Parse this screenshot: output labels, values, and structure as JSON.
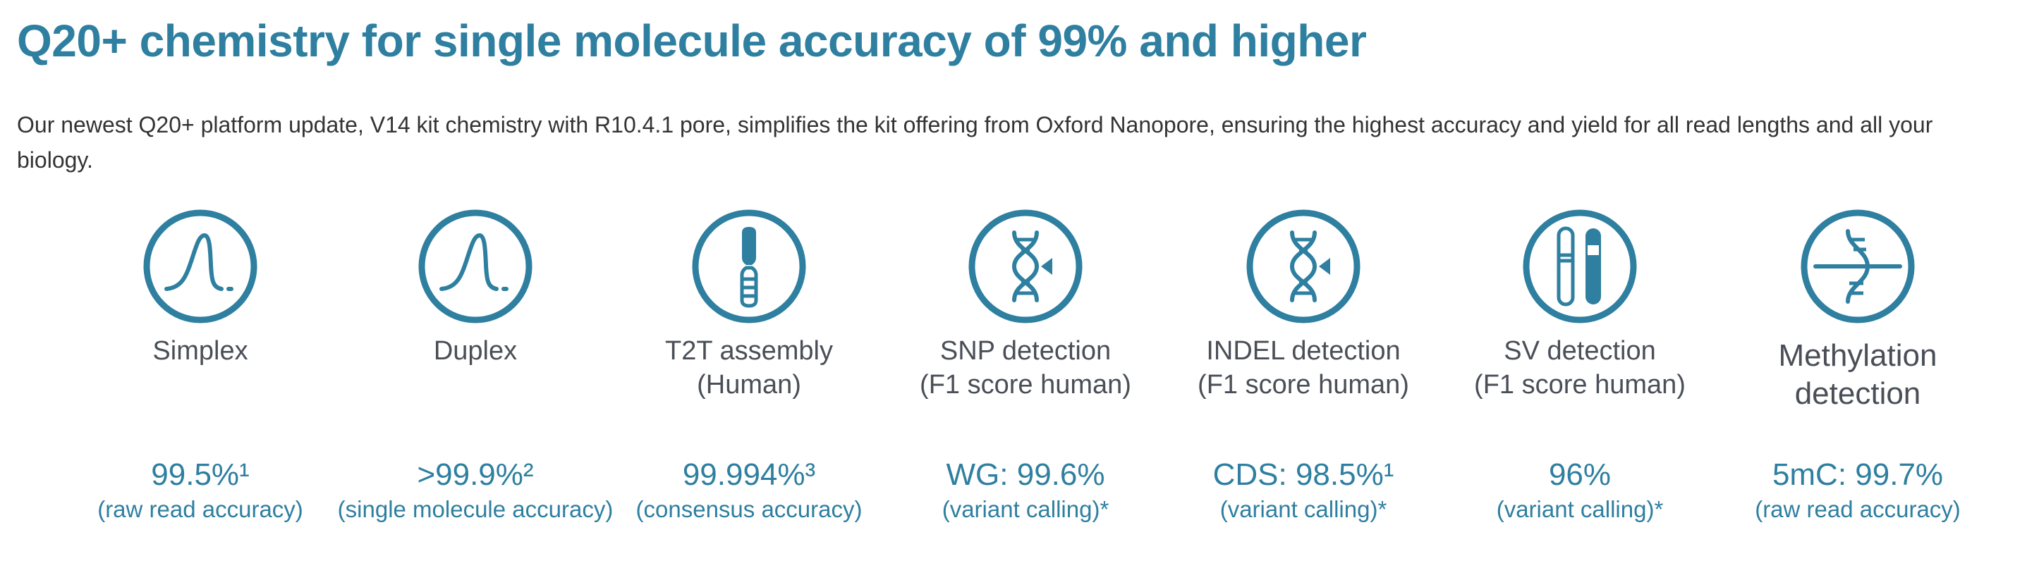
{
  "title": "Q20+ chemistry for single molecule accuracy of 99% and higher",
  "intro": "Our newest Q20+ platform update, V14 kit chemistry with R10.4.1 pore, simplifies the kit offering from Oxford Nanopore, ensuring the highest accuracy and yield for all read lengths and all your biology.",
  "colors": {
    "accent": "#2e7fa0",
    "label": "#4a4f57",
    "body_text": "#333333"
  },
  "features": [
    {
      "icon": "single-peak-icon",
      "label": "Simplex",
      "value": "99.5%¹",
      "note": "(raw read accuracy)"
    },
    {
      "icon": "single-peak-icon",
      "label": "Duplex",
      "value": ">99.9%²",
      "note": "(single molecule accuracy)"
    },
    {
      "icon": "chromosome-icon",
      "label": "T2T assembly\n(Human)",
      "value": "99.994%³",
      "note": "(consensus accuracy)"
    },
    {
      "icon": "dna-pointer-icon",
      "label": "SNP detection\n(F1 score human)",
      "value": "WG: 99.6%",
      "note": "(variant calling)*"
    },
    {
      "icon": "dna-pointer-icon",
      "label": "INDEL detection\n(F1 score human)",
      "value": "CDS: 98.5%¹",
      "note": "(variant calling)*"
    },
    {
      "icon": "chromosome-pair-icon",
      "label": "SV detection\n(F1 score human)",
      "value": "96%",
      "note": "(variant calling)*"
    },
    {
      "icon": "methylated-dna-icon",
      "label": "Methylation\ndetection",
      "value": "5mC: 99.7%",
      "note": "(raw read accuracy)"
    }
  ]
}
